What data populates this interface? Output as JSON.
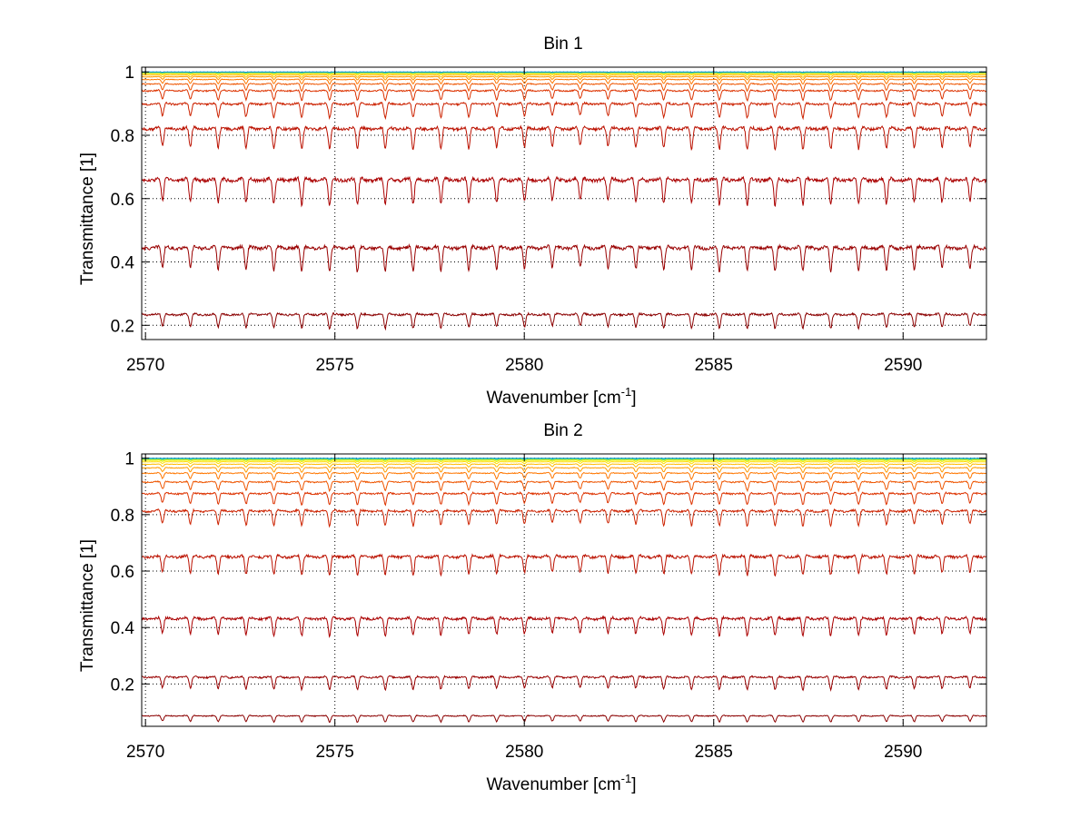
{
  "chart_data": [
    {
      "type": "line",
      "title": "Bin 1",
      "xlabel": "Wavenumber [cm",
      "xlabel_superscript": "-1",
      "xlabel_suffix": "]",
      "ylabel": "Transmittance [1]",
      "xlim": [
        2569.9,
        2592.2
      ],
      "ylim": [
        0.155,
        1.015
      ],
      "xticks": [
        2570,
        2575,
        2580,
        2585,
        2590
      ],
      "yticks": [
        0.2,
        0.4,
        0.6,
        0.8,
        1
      ],
      "ytick_labels": [
        "0.2",
        "0.4",
        "0.6",
        "0.8",
        "1"
      ],
      "grid": true,
      "line_spacing_cm-1": 0.735,
      "series": [
        {
          "baseline": 0.24,
          "depth": 0.05,
          "color": "#8b0000"
        },
        {
          "baseline": 0.455,
          "depth": 0.085,
          "color": "#990000"
        },
        {
          "baseline": 0.67,
          "depth": 0.09,
          "color": "#aa0000"
        },
        {
          "baseline": 0.83,
          "depth": 0.075,
          "color": "#bb1100"
        },
        {
          "baseline": 0.905,
          "depth": 0.05,
          "color": "#cc2200"
        },
        {
          "baseline": 0.945,
          "depth": 0.035,
          "color": "#dd3300"
        },
        {
          "baseline": 0.965,
          "depth": 0.025,
          "color": "#ee5500"
        },
        {
          "baseline": 0.978,
          "depth": 0.016,
          "color": "#ff7700"
        },
        {
          "baseline": 0.986,
          "depth": 0.011,
          "color": "#ff9900"
        },
        {
          "baseline": 0.991,
          "depth": 0.008,
          "color": "#ffbb00"
        },
        {
          "baseline": 0.995,
          "depth": 0.005,
          "color": "#ffdd00"
        },
        {
          "baseline": 0.997,
          "depth": 0.003,
          "color": "#eeee00"
        },
        {
          "baseline": 0.998,
          "depth": 0.002,
          "color": "#bbee22"
        },
        {
          "baseline": 0.999,
          "depth": 0.002,
          "color": "#66dd66"
        },
        {
          "baseline": 0.999,
          "depth": 0.001,
          "color": "#22cccc"
        },
        {
          "baseline": 1.0,
          "depth": 0.001,
          "color": "#1199cc"
        }
      ]
    },
    {
      "type": "line",
      "title": "Bin 2",
      "xlabel": "Wavenumber [cm",
      "xlabel_superscript": "-1",
      "xlabel_suffix": "]",
      "ylabel": "Transmittance [1]",
      "xlim": [
        2569.9,
        2592.2
      ],
      "ylim": [
        0.05,
        1.015
      ],
      "xticks": [
        2570,
        2575,
        2580,
        2585,
        2590
      ],
      "yticks": [
        0.2,
        0.4,
        0.6,
        0.8,
        1
      ],
      "ytick_labels": [
        "0.2",
        "0.4",
        "0.6",
        "0.8",
        "1"
      ],
      "grid": true,
      "line_spacing_cm-1": 0.735,
      "series": [
        {
          "baseline": 0.09,
          "depth": 0.025,
          "color": "#8b0000"
        },
        {
          "baseline": 0.23,
          "depth": 0.05,
          "color": "#990000"
        },
        {
          "baseline": 0.44,
          "depth": 0.07,
          "color": "#aa0000"
        },
        {
          "baseline": 0.66,
          "depth": 0.075,
          "color": "#bb1100"
        },
        {
          "baseline": 0.82,
          "depth": 0.06,
          "color": "#cc2200"
        },
        {
          "baseline": 0.88,
          "depth": 0.045,
          "color": "#dd3300"
        },
        {
          "baseline": 0.92,
          "depth": 0.035,
          "color": "#ee5500"
        },
        {
          "baseline": 0.95,
          "depth": 0.025,
          "color": "#ff7700"
        },
        {
          "baseline": 0.968,
          "depth": 0.018,
          "color": "#ff9900"
        },
        {
          "baseline": 0.98,
          "depth": 0.012,
          "color": "#ffbb00"
        },
        {
          "baseline": 0.988,
          "depth": 0.008,
          "color": "#ffdd00"
        },
        {
          "baseline": 0.993,
          "depth": 0.006,
          "color": "#eeee00"
        },
        {
          "baseline": 0.996,
          "depth": 0.004,
          "color": "#bbee22"
        },
        {
          "baseline": 0.998,
          "depth": 0.003,
          "color": "#66dd66"
        },
        {
          "baseline": 0.999,
          "depth": 0.002,
          "color": "#22cccc"
        },
        {
          "baseline": 1.0,
          "depth": 0.001,
          "color": "#1199cc"
        }
      ]
    }
  ]
}
